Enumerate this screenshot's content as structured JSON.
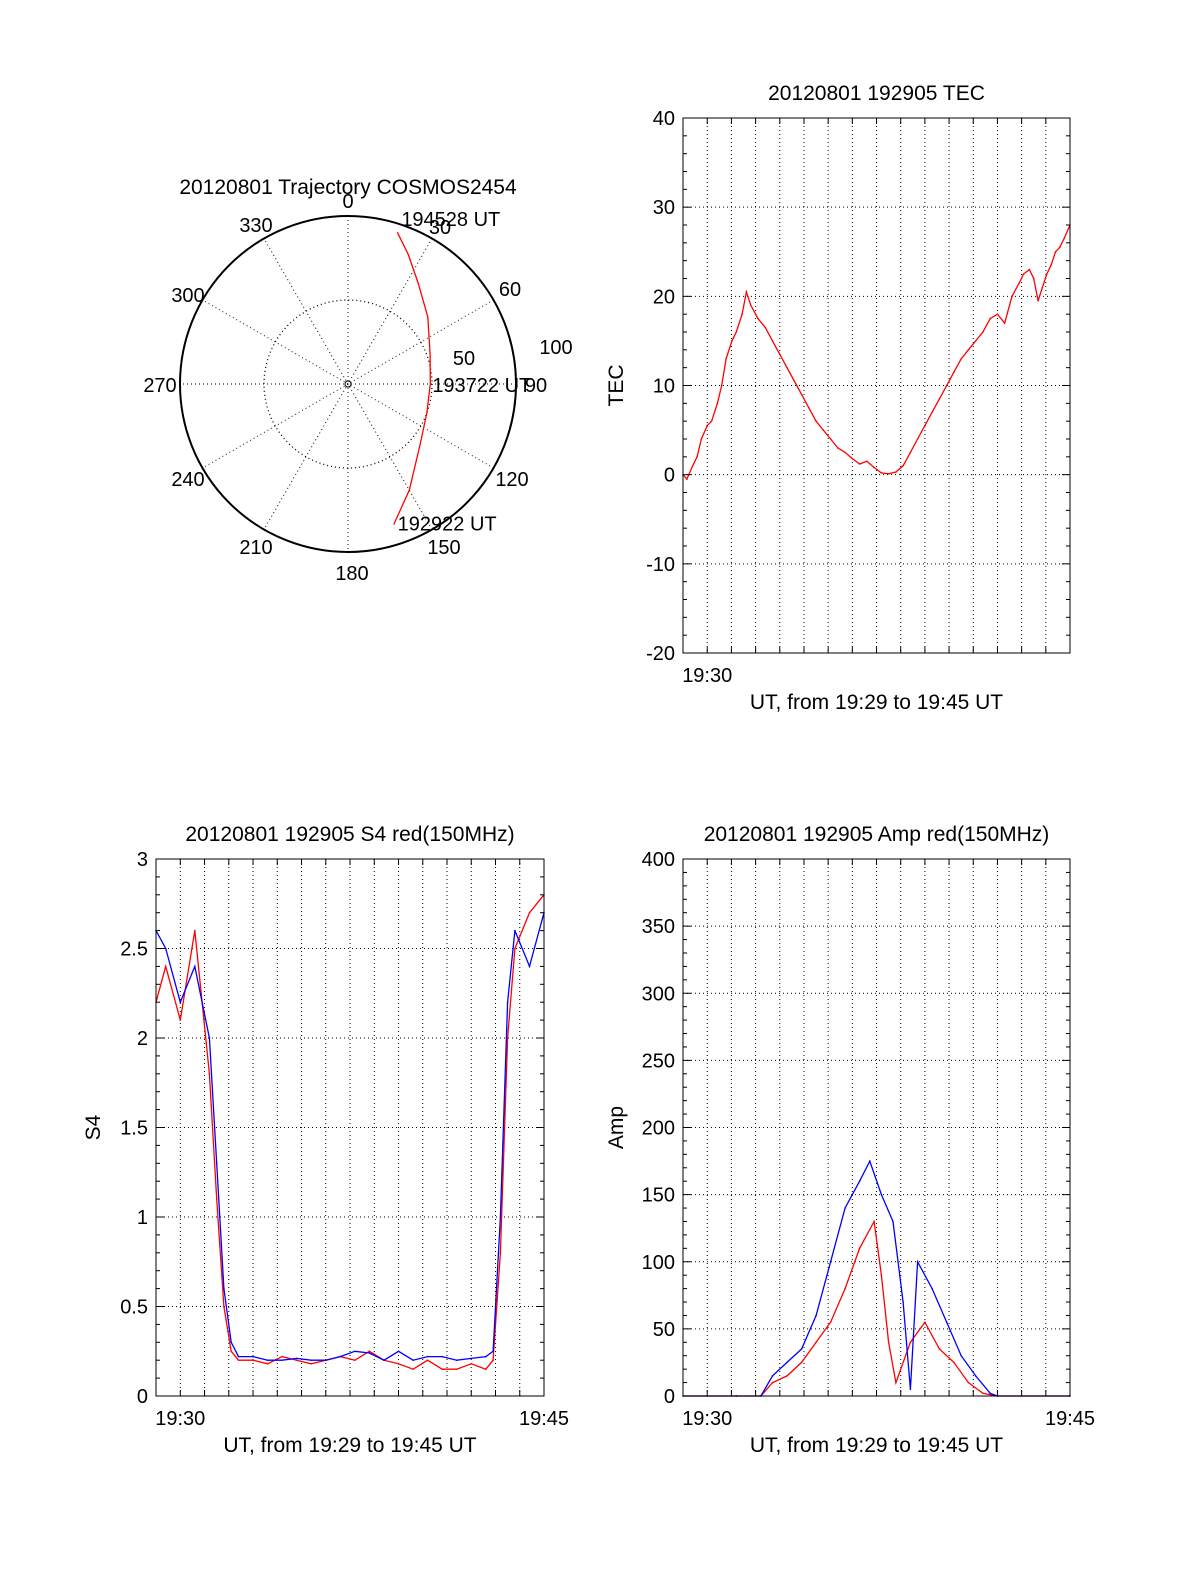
{
  "colors": {
    "red": "#ff0000",
    "blue": "#0000ff",
    "axis": "#000000",
    "grid": "#000000"
  },
  "chart_data": [
    {
      "id": "trajectory",
      "type": "polar",
      "title": "20120801 Trajectory COSMOS2454",
      "angle_labels": [
        "0",
        "30",
        "60",
        "90",
        "120",
        "150",
        "180",
        "210",
        "240",
        "270",
        "300",
        "330"
      ],
      "radial_labels": [
        "50",
        "100"
      ],
      "rmax": 100,
      "grid": true,
      "track": {
        "color": "red",
        "points": [
          {
            "az": 162,
            "el_dist": 88
          },
          {
            "az": 150,
            "el_dist": 73
          },
          {
            "az": 130,
            "el_dist": 56
          },
          {
            "az": 110,
            "el_dist": 50
          },
          {
            "az": 90,
            "el_dist": 49
          },
          {
            "az": 70,
            "el_dist": 52
          },
          {
            "az": 50,
            "el_dist": 62
          },
          {
            "az": 35,
            "el_dist": 73
          },
          {
            "az": 25,
            "el_dist": 85
          },
          {
            "az": 18,
            "el_dist": 95
          }
        ]
      },
      "annotations": [
        {
          "text": "194528 UT",
          "az": 18,
          "el_dist": 95
        },
        {
          "text": "193722 UT",
          "az": 90,
          "el_dist": 49
        },
        {
          "text": "192922 UT",
          "az": 162,
          "el_dist": 88
        }
      ]
    },
    {
      "id": "tec",
      "type": "line",
      "title": "20120801 192905 TEC",
      "xlabel": "UT, from 19:29 to 19:45 UT",
      "ylabel": "TEC",
      "xlim": [
        19.4833,
        19.75
      ],
      "ylim": [
        -20,
        40
      ],
      "yticks": [
        -20,
        -10,
        0,
        10,
        20,
        30,
        40
      ],
      "xticks": [
        {
          "value": 19.5,
          "label": "19:30"
        }
      ],
      "grid": true,
      "series": [
        {
          "color": "red",
          "x": [
            19.4833,
            19.486,
            19.49,
            19.493,
            19.496,
            19.5,
            19.503,
            19.507,
            19.51,
            19.513,
            19.517,
            19.52,
            19.524,
            19.527,
            19.53,
            19.535,
            19.54,
            19.545,
            19.55,
            19.555,
            19.56,
            19.565,
            19.57,
            19.575,
            19.58,
            19.585,
            19.59,
            19.595,
            19.6,
            19.605,
            19.61,
            19.615,
            19.62,
            19.625,
            19.63,
            19.635,
            19.64,
            19.645,
            19.65,
            19.655,
            19.66,
            19.665,
            19.67,
            19.675,
            19.68,
            19.685,
            19.69,
            19.695,
            19.7,
            19.705,
            19.71,
            19.715,
            19.718,
            19.722,
            19.725,
            19.728,
            19.731,
            19.734,
            19.737,
            19.74,
            19.743,
            19.746,
            19.75
          ],
          "y": [
            0,
            -0.5,
            1,
            2,
            4,
            5.5,
            6,
            8,
            10,
            13,
            15,
            16,
            18,
            20.5,
            19,
            17.5,
            16.5,
            15,
            13.5,
            12,
            10.5,
            9,
            7.5,
            6,
            5,
            4,
            3,
            2.5,
            1.8,
            1.2,
            1.5,
            0.8,
            0.2,
            0.1,
            0.3,
            1,
            2.5,
            4,
            5.5,
            7,
            8.5,
            10,
            11.5,
            13,
            14,
            15,
            16,
            17.5,
            18,
            17,
            20,
            21.5,
            22.5,
            23,
            22,
            19.5,
            21,
            22.5,
            23.5,
            25,
            25.5,
            26.5,
            28
          ]
        }
      ]
    },
    {
      "id": "s4",
      "type": "line",
      "title": "20120801 192905 S4 red(150MHz)",
      "xlabel": "UT, from 19:29 to 19:45 UT",
      "ylabel": "S4",
      "xlim": [
        19.4833,
        19.75
      ],
      "ylim": [
        0,
        3
      ],
      "yticks": [
        0,
        0.5,
        1,
        1.5,
        2,
        2.5,
        3
      ],
      "ytick_labels": [
        "0",
        "0.5",
        "1",
        "1.5",
        "2",
        "2.5",
        "3"
      ],
      "xticks": [
        {
          "value": 19.5,
          "label": "19:30"
        },
        {
          "value": 19.75,
          "label": "19:45"
        }
      ],
      "grid": true,
      "series": [
        {
          "color": "red",
          "x": [
            19.4833,
            19.49,
            19.5,
            19.51,
            19.52,
            19.525,
            19.53,
            19.535,
            19.54,
            19.55,
            19.56,
            19.57,
            19.58,
            19.59,
            19.6,
            19.61,
            19.62,
            19.63,
            19.64,
            19.65,
            19.66,
            19.67,
            19.68,
            19.69,
            19.7,
            19.71,
            19.715,
            19.72,
            19.725,
            19.73,
            19.74,
            19.75
          ],
          "y": [
            2.2,
            2.4,
            2.1,
            2.6,
            1.8,
            1.1,
            0.5,
            0.25,
            0.2,
            0.2,
            0.18,
            0.22,
            0.2,
            0.18,
            0.2,
            0.22,
            0.2,
            0.25,
            0.2,
            0.18,
            0.15,
            0.2,
            0.15,
            0.15,
            0.18,
            0.15,
            0.2,
            0.8,
            2.0,
            2.5,
            2.7,
            2.8
          ]
        },
        {
          "color": "blue",
          "x": [
            19.4833,
            19.49,
            19.5,
            19.51,
            19.52,
            19.525,
            19.53,
            19.535,
            19.54,
            19.55,
            19.56,
            19.57,
            19.58,
            19.59,
            19.6,
            19.61,
            19.62,
            19.63,
            19.64,
            19.65,
            19.66,
            19.67,
            19.68,
            19.69,
            19.7,
            19.71,
            19.715,
            19.72,
            19.725,
            19.73,
            19.74,
            19.75
          ],
          "y": [
            2.6,
            2.5,
            2.2,
            2.4,
            2.0,
            1.3,
            0.6,
            0.3,
            0.22,
            0.22,
            0.2,
            0.2,
            0.21,
            0.2,
            0.2,
            0.22,
            0.25,
            0.24,
            0.2,
            0.25,
            0.2,
            0.22,
            0.22,
            0.2,
            0.21,
            0.22,
            0.25,
            1.0,
            2.2,
            2.6,
            2.4,
            2.7
          ]
        }
      ]
    },
    {
      "id": "amp",
      "type": "line",
      "title": "20120801 192905 Amp red(150MHz)",
      "xlabel": "UT, from 19:29 to 19:45 UT",
      "ylabel": "Amp",
      "xlim": [
        19.4833,
        19.75
      ],
      "ylim": [
        0,
        400
      ],
      "yticks": [
        0,
        50,
        100,
        150,
        200,
        250,
        300,
        350,
        400
      ],
      "xticks": [
        {
          "value": 19.5,
          "label": "19:30"
        },
        {
          "value": 19.75,
          "label": "19:45"
        }
      ],
      "grid": true,
      "series": [
        {
          "color": "red",
          "x": [
            19.4833,
            19.5,
            19.52,
            19.537,
            19.545,
            19.555,
            19.565,
            19.575,
            19.585,
            19.595,
            19.605,
            19.615,
            19.62,
            19.625,
            19.63,
            19.64,
            19.65,
            19.66,
            19.67,
            19.68,
            19.69,
            19.7,
            19.75
          ],
          "y": [
            0,
            0,
            0,
            0,
            10,
            15,
            25,
            40,
            55,
            80,
            110,
            130,
            90,
            40,
            10,
            40,
            55,
            35,
            25,
            10,
            2,
            0,
            0
          ]
        },
        {
          "color": "blue",
          "x": [
            19.4833,
            19.5,
            19.52,
            19.537,
            19.545,
            19.555,
            19.565,
            19.575,
            19.585,
            19.595,
            19.605,
            19.612,
            19.62,
            19.628,
            19.635,
            19.64,
            19.645,
            19.655,
            19.665,
            19.675,
            19.685,
            19.695,
            19.7,
            19.75
          ],
          "y": [
            0,
            0,
            0,
            0,
            15,
            25,
            35,
            60,
            100,
            140,
            160,
            175,
            150,
            130,
            70,
            5,
            100,
            80,
            55,
            30,
            15,
            2,
            0,
            0
          ]
        }
      ]
    }
  ]
}
